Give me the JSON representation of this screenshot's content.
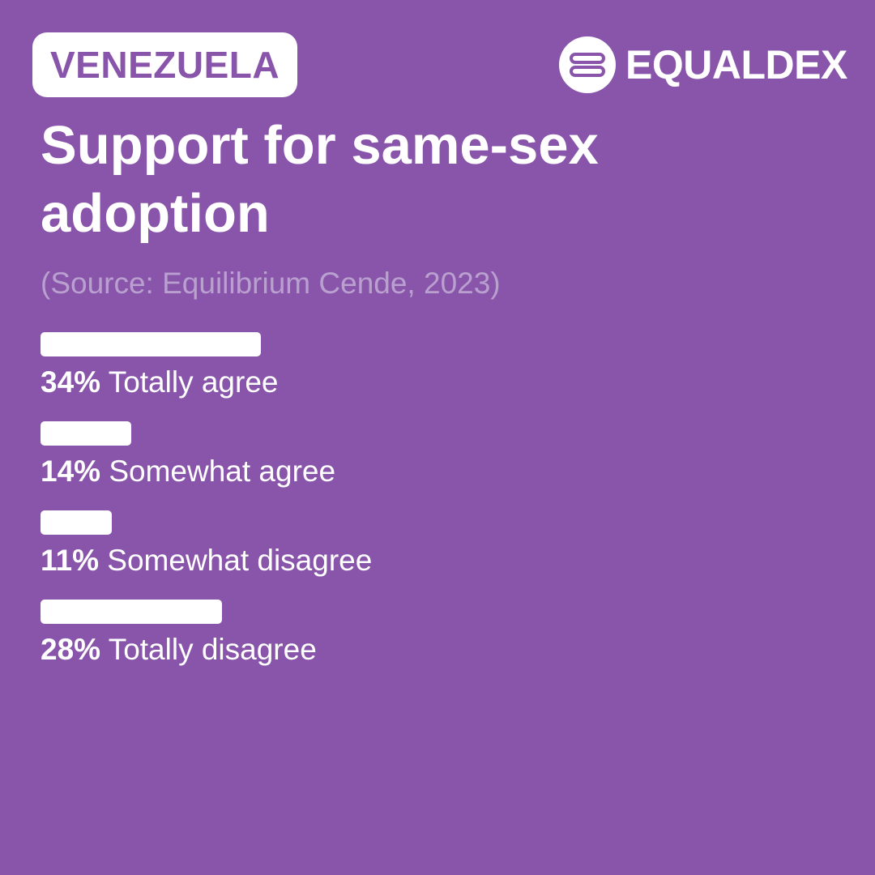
{
  "header": {
    "country": "VENEZUELA",
    "brand": "EQUALDEX"
  },
  "colors": {
    "background": "#8855aa",
    "text": "#ffffff",
    "source_text": "#b9a0cf"
  },
  "title": "Support for same-sex adoption",
  "source": "(Source: Equilibrium Cende, 2023)",
  "chart_data": {
    "type": "bar",
    "orientation": "horizontal",
    "title": "Support for same-sex adoption",
    "categories": [
      "Totally agree",
      "Somewhat agree",
      "Somewhat disagree",
      "Totally disagree"
    ],
    "values": [
      34,
      14,
      11,
      28
    ],
    "value_labels": [
      "34%",
      "14%",
      "11%",
      "28%"
    ],
    "unit": "%",
    "xlim": [
      0,
      100
    ],
    "grid": false
  }
}
